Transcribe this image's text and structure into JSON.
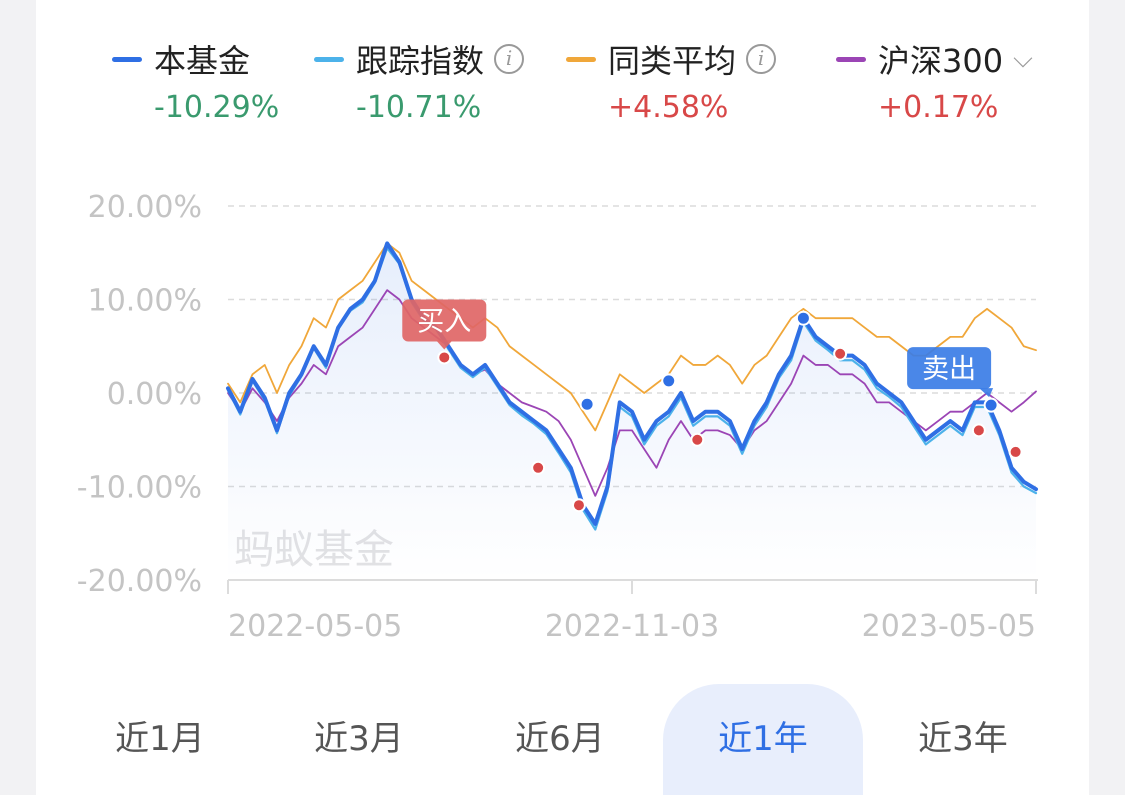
{
  "legend": [
    {
      "name": "本基金",
      "value": "-10.29%",
      "color": "#2f6fe4",
      "value_color": "#3a9a6e",
      "info": false,
      "caret": false
    },
    {
      "name": "跟踪指数",
      "value": "-10.71%",
      "color": "#4cb2ea",
      "value_color": "#3a9a6e",
      "info": true,
      "caret": false
    },
    {
      "name": "同类平均",
      "value": "+4.58%",
      "color": "#f0a73a",
      "value_color": "#d84848",
      "info": true,
      "caret": false
    },
    {
      "name": "沪深300",
      "value": "+0.17%",
      "color": "#9b45b5",
      "value_color": "#d84848",
      "info": false,
      "caret": true
    }
  ],
  "watermark": "蚂蚁基金",
  "annotations": {
    "buy": "买入",
    "sell": "卖出"
  },
  "tabs": [
    "近1月",
    "近3月",
    "近6月",
    "近1年",
    "近3年"
  ],
  "active_tab": 3,
  "chart_data": {
    "type": "line",
    "y_ticks": [
      "20.00%",
      "10.00%",
      "0.00%",
      "-10.00%",
      "-20.00%"
    ],
    "ylim": [
      -20,
      20
    ],
    "x_ticks": [
      "2022-05-05",
      "2022-11-03",
      "2023-05-05"
    ],
    "grid": true,
    "series": [
      {
        "name": "本基金",
        "color": "#2f6fe4",
        "points": [
          [
            0,
            0.5
          ],
          [
            3,
            -2
          ],
          [
            6,
            1.5
          ],
          [
            9,
            -0.5
          ],
          [
            12,
            -4
          ],
          [
            15,
            0
          ],
          [
            18,
            2
          ],
          [
            21,
            5
          ],
          [
            24,
            3
          ],
          [
            27,
            7
          ],
          [
            30,
            9
          ],
          [
            33,
            10
          ],
          [
            36,
            12
          ],
          [
            39,
            16
          ],
          [
            42,
            14
          ],
          [
            45,
            10
          ],
          [
            48,
            8
          ],
          [
            51,
            7
          ],
          [
            54,
            5
          ],
          [
            57,
            3
          ],
          [
            60,
            2
          ],
          [
            63,
            3
          ],
          [
            66,
            1
          ],
          [
            69,
            -1
          ],
          [
            72,
            -2
          ],
          [
            75,
            -3
          ],
          [
            78,
            -4
          ],
          [
            81,
            -6
          ],
          [
            84,
            -8
          ],
          [
            87,
            -12
          ],
          [
            90,
            -14
          ],
          [
            93,
            -10
          ],
          [
            96,
            -1
          ],
          [
            99,
            -2
          ],
          [
            102,
            -5
          ],
          [
            105,
            -3
          ],
          [
            108,
            -2
          ],
          [
            111,
            0
          ],
          [
            114,
            -3
          ],
          [
            117,
            -2
          ],
          [
            120,
            -2
          ],
          [
            123,
            -3
          ],
          [
            126,
            -6
          ],
          [
            129,
            -3
          ],
          [
            132,
            -1
          ],
          [
            135,
            2
          ],
          [
            138,
            4
          ],
          [
            141,
            8
          ],
          [
            144,
            6
          ],
          [
            147,
            5
          ],
          [
            150,
            4
          ],
          [
            153,
            4
          ],
          [
            156,
            3
          ],
          [
            159,
            1
          ],
          [
            162,
            0
          ],
          [
            165,
            -1
          ],
          [
            168,
            -3
          ],
          [
            171,
            -5
          ],
          [
            174,
            -4
          ],
          [
            177,
            -3
          ],
          [
            180,
            -4
          ],
          [
            183,
            -1
          ],
          [
            186,
            -1
          ],
          [
            189,
            -4
          ],
          [
            192,
            -8
          ],
          [
            195,
            -9.5
          ],
          [
            198,
            -10.29
          ]
        ]
      },
      {
        "name": "跟踪指数",
        "color": "#4cb2ea",
        "points": [
          [
            0,
            0.3
          ],
          [
            3,
            -2.3
          ],
          [
            6,
            1.3
          ],
          [
            9,
            -0.8
          ],
          [
            12,
            -4.3
          ],
          [
            15,
            -0.3
          ],
          [
            18,
            1.8
          ],
          [
            21,
            4.8
          ],
          [
            24,
            2.7
          ],
          [
            27,
            6.8
          ],
          [
            30,
            8.8
          ],
          [
            33,
            9.7
          ],
          [
            36,
            11.8
          ],
          [
            39,
            15.5
          ],
          [
            42,
            13.8
          ],
          [
            45,
            9.7
          ],
          [
            48,
            7.7
          ],
          [
            51,
            6.8
          ],
          [
            54,
            4.7
          ],
          [
            57,
            2.7
          ],
          [
            60,
            1.7
          ],
          [
            63,
            2.7
          ],
          [
            66,
            0.7
          ],
          [
            69,
            -1.3
          ],
          [
            72,
            -2.4
          ],
          [
            75,
            -3.3
          ],
          [
            78,
            -4.4
          ],
          [
            81,
            -6.4
          ],
          [
            84,
            -8.5
          ],
          [
            87,
            -12.5
          ],
          [
            90,
            -14.6
          ],
          [
            93,
            -10.5
          ],
          [
            96,
            -1.5
          ],
          [
            99,
            -2.5
          ],
          [
            102,
            -5.5
          ],
          [
            105,
            -3.5
          ],
          [
            108,
            -2.5
          ],
          [
            111,
            -0.5
          ],
          [
            114,
            -3.5
          ],
          [
            117,
            -2.5
          ],
          [
            120,
            -2.5
          ],
          [
            123,
            -3.5
          ],
          [
            126,
            -6.5
          ],
          [
            129,
            -3.5
          ],
          [
            132,
            -1.5
          ],
          [
            135,
            1.6
          ],
          [
            138,
            3.5
          ],
          [
            141,
            7.6
          ],
          [
            144,
            5.6
          ],
          [
            147,
            4.6
          ],
          [
            150,
            3.5
          ],
          [
            153,
            3.5
          ],
          [
            156,
            2.5
          ],
          [
            159,
            0.5
          ],
          [
            162,
            -0.4
          ],
          [
            165,
            -1.5
          ],
          [
            168,
            -3.5
          ],
          [
            171,
            -5.5
          ],
          [
            174,
            -4.5
          ],
          [
            177,
            -3.5
          ],
          [
            180,
            -4.5
          ],
          [
            183,
            -1.5
          ],
          [
            186,
            -1.5
          ],
          [
            189,
            -4.5
          ],
          [
            192,
            -8.5
          ],
          [
            195,
            -10
          ],
          [
            198,
            -10.71
          ]
        ]
      },
      {
        "name": "同类平均",
        "color": "#f0a73a",
        "points": [
          [
            0,
            1
          ],
          [
            3,
            -1
          ],
          [
            6,
            2
          ],
          [
            9,
            3
          ],
          [
            12,
            0
          ],
          [
            15,
            3
          ],
          [
            18,
            5
          ],
          [
            21,
            8
          ],
          [
            24,
            7
          ],
          [
            27,
            10
          ],
          [
            30,
            11
          ],
          [
            33,
            12
          ],
          [
            36,
            14
          ],
          [
            39,
            16
          ],
          [
            42,
            15
          ],
          [
            45,
            12
          ],
          [
            48,
            11
          ],
          [
            51,
            10
          ],
          [
            54,
            9
          ],
          [
            57,
            8
          ],
          [
            60,
            7
          ],
          [
            63,
            8
          ],
          [
            66,
            7
          ],
          [
            69,
            5
          ],
          [
            72,
            4
          ],
          [
            75,
            3
          ],
          [
            78,
            2
          ],
          [
            81,
            1
          ],
          [
            84,
            0
          ],
          [
            87,
            -2
          ],
          [
            90,
            -4
          ],
          [
            93,
            -1
          ],
          [
            96,
            2
          ],
          [
            99,
            1
          ],
          [
            102,
            0
          ],
          [
            105,
            1
          ],
          [
            108,
            2
          ],
          [
            111,
            4
          ],
          [
            114,
            3
          ],
          [
            117,
            3
          ],
          [
            120,
            4
          ],
          [
            123,
            3
          ],
          [
            126,
            1
          ],
          [
            129,
            3
          ],
          [
            132,
            4
          ],
          [
            135,
            6
          ],
          [
            138,
            8
          ],
          [
            141,
            9
          ],
          [
            144,
            8
          ],
          [
            147,
            8
          ],
          [
            150,
            8
          ],
          [
            153,
            8
          ],
          [
            156,
            7
          ],
          [
            159,
            6
          ],
          [
            162,
            6
          ],
          [
            165,
            5
          ],
          [
            168,
            4
          ],
          [
            171,
            4
          ],
          [
            174,
            5
          ],
          [
            177,
            6
          ],
          [
            180,
            6
          ],
          [
            183,
            8
          ],
          [
            186,
            9
          ],
          [
            189,
            8
          ],
          [
            192,
            7
          ],
          [
            195,
            5
          ],
          [
            198,
            4.58
          ]
        ]
      },
      {
        "name": "沪深300",
        "color": "#9b45b5",
        "points": [
          [
            0,
            0
          ],
          [
            3,
            -2
          ],
          [
            6,
            0.5
          ],
          [
            9,
            -1
          ],
          [
            12,
            -3
          ],
          [
            15,
            -0.5
          ],
          [
            18,
            1
          ],
          [
            21,
            3
          ],
          [
            24,
            2
          ],
          [
            27,
            5
          ],
          [
            30,
            6
          ],
          [
            33,
            7
          ],
          [
            36,
            9
          ],
          [
            39,
            11
          ],
          [
            42,
            10
          ],
          [
            45,
            8
          ],
          [
            48,
            7
          ],
          [
            51,
            6
          ],
          [
            54,
            5
          ],
          [
            57,
            3
          ],
          [
            60,
            2
          ],
          [
            63,
            2.5
          ],
          [
            66,
            1
          ],
          [
            69,
            0
          ],
          [
            72,
            -1
          ],
          [
            75,
            -1.5
          ],
          [
            78,
            -2
          ],
          [
            81,
            -3
          ],
          [
            84,
            -5
          ],
          [
            87,
            -8
          ],
          [
            90,
            -11
          ],
          [
            93,
            -8
          ],
          [
            96,
            -4
          ],
          [
            99,
            -4
          ],
          [
            102,
            -6
          ],
          [
            105,
            -8
          ],
          [
            108,
            -5
          ],
          [
            111,
            -3
          ],
          [
            114,
            -5
          ],
          [
            117,
            -4
          ],
          [
            120,
            -4
          ],
          [
            123,
            -4.5
          ],
          [
            126,
            -6
          ],
          [
            129,
            -4
          ],
          [
            132,
            -3
          ],
          [
            135,
            -1
          ],
          [
            138,
            1
          ],
          [
            141,
            4
          ],
          [
            144,
            3
          ],
          [
            147,
            3
          ],
          [
            150,
            2
          ],
          [
            153,
            2
          ],
          [
            156,
            1
          ],
          [
            159,
            -1
          ],
          [
            162,
            -1
          ],
          [
            165,
            -2
          ],
          [
            168,
            -3
          ],
          [
            171,
            -4
          ],
          [
            174,
            -3
          ],
          [
            177,
            -2
          ],
          [
            180,
            -2
          ],
          [
            183,
            -1
          ],
          [
            186,
            0
          ],
          [
            189,
            -1
          ],
          [
            192,
            -2
          ],
          [
            195,
            -1
          ],
          [
            198,
            0.17
          ]
        ]
      }
    ],
    "blue_markers": [
      [
        88,
        -1.2
      ],
      [
        108,
        1.3
      ],
      [
        141,
        8
      ],
      [
        187,
        -1.3
      ]
    ],
    "red_markers": [
      [
        53,
        3.8
      ],
      [
        76,
        -8
      ],
      [
        86,
        -12
      ],
      [
        115,
        -5
      ],
      [
        150,
        4.2
      ],
      [
        184,
        -4
      ],
      [
        193,
        -6.3
      ]
    ],
    "buy_point": [
      53,
      3.8
    ],
    "sell_point": [
      187,
      -1.3
    ]
  }
}
